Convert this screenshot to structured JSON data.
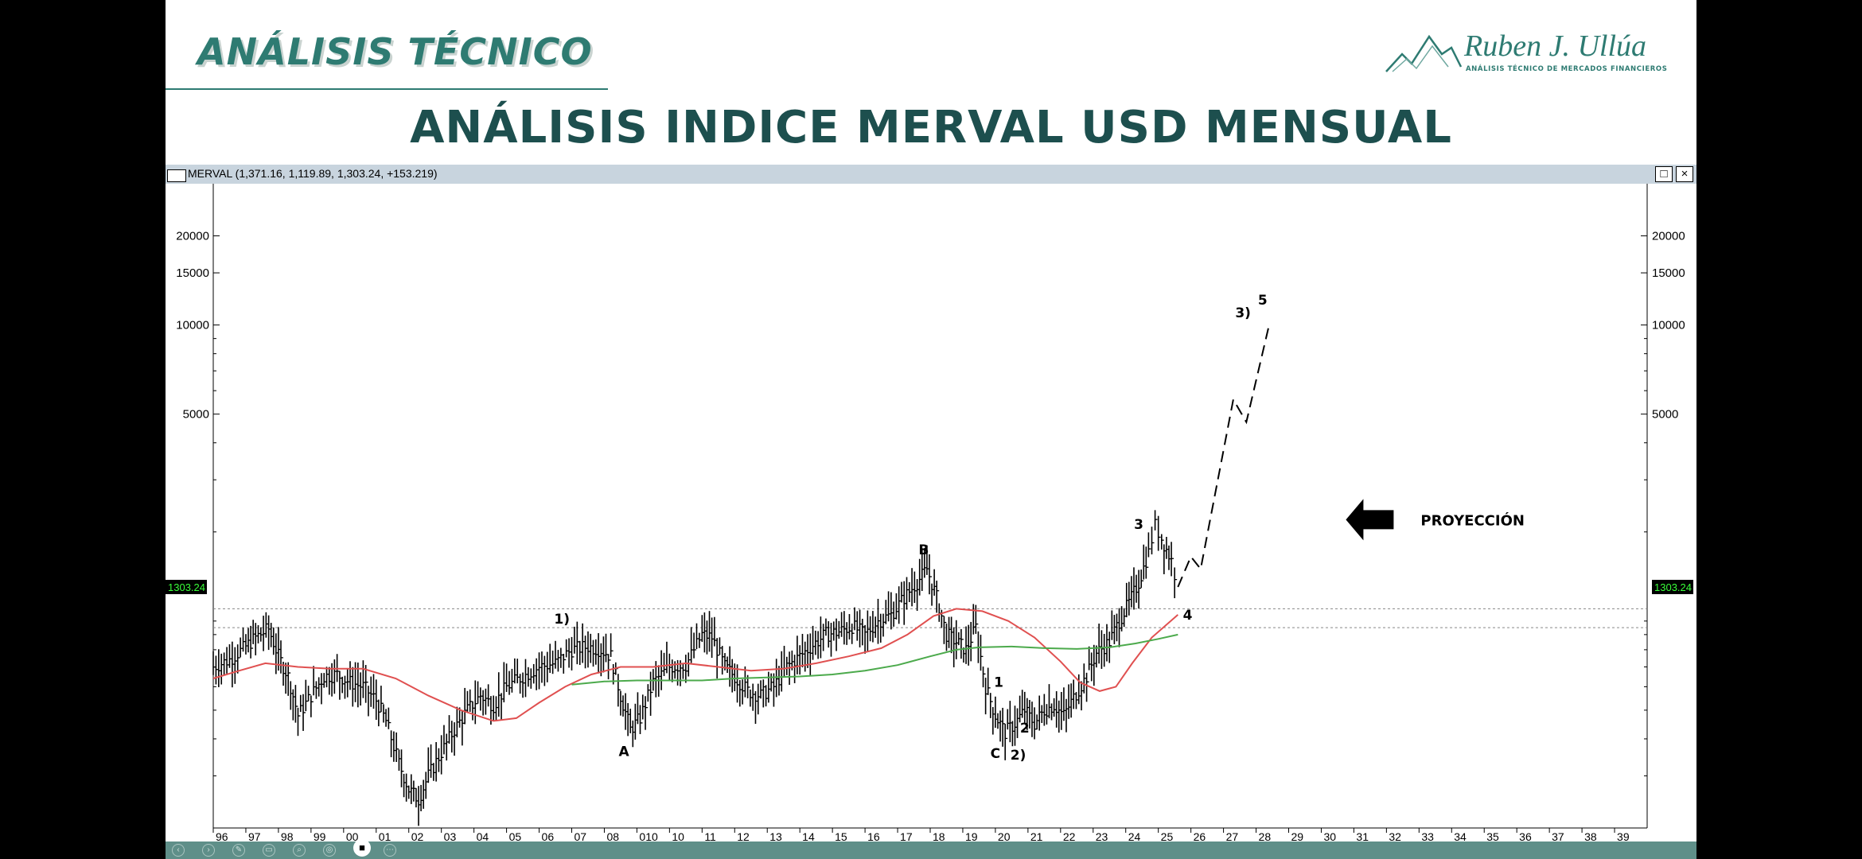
{
  "slide": {
    "section_title": "ANÁLISIS TÉCNICO",
    "main_title": "ANÁLISIS INDICE MERVAL USD MENSUAL",
    "logo_name": "Ruben J. Ullúa",
    "logo_tagline": "ANÁLISIS TÉCNICO DE MERCADOS FINANCIEROS"
  },
  "chart_window": {
    "header_text": "MERVAL (1,371.16, 1,119.89, 1,303.24, +153.219)",
    "restore_glyph": "□",
    "close_glyph": "×"
  },
  "chart_data": {
    "type": "line",
    "symbol": "MERVAL",
    "scale": "log",
    "ylim": [
      200,
      30000
    ],
    "xlim": [
      1996,
      2040
    ],
    "y_ticks": [
      5000,
      10000,
      15000,
      20000
    ],
    "x_tick_labels": [
      "96",
      "97",
      "98",
      "99",
      "00",
      "01",
      "02",
      "03",
      "04",
      "05",
      "06",
      "07",
      "08",
      "010",
      "10",
      "11",
      "12",
      "13",
      "14",
      "15",
      "16",
      "17",
      "18",
      "19",
      "20",
      "21",
      "22",
      "23",
      "24",
      "25",
      "26",
      "27",
      "28",
      "29",
      "30",
      "31",
      "32",
      "33",
      "34",
      "35",
      "36",
      "37",
      "38",
      "39"
    ],
    "last_price": "1303.24",
    "ohlc_last": {
      "open": 1371.16,
      "high": 1371.16,
      "low": 1119.89,
      "close": 1303.24,
      "change": 153.219
    },
    "horizontal_levels": [
      1100,
      950
    ],
    "series": [
      {
        "style": "bars",
        "color": "#000000",
        "points": [
          [
            1996.0,
            700
          ],
          [
            1996.5,
            740
          ],
          [
            1997.0,
            820
          ],
          [
            1997.3,
            880
          ],
          [
            1997.7,
            940
          ],
          [
            1998.0,
            760
          ],
          [
            1998.3,
            650
          ],
          [
            1998.6,
            480
          ],
          [
            1999.0,
            560
          ],
          [
            1999.4,
            650
          ],
          [
            1999.8,
            660
          ],
          [
            2000.2,
            620
          ],
          [
            2000.6,
            600
          ],
          [
            2001.0,
            540
          ],
          [
            2001.3,
            460
          ],
          [
            2001.7,
            330
          ],
          [
            2002.0,
            270
          ],
          [
            2002.3,
            250
          ],
          [
            2002.6,
            300
          ],
          [
            2003.0,
            360
          ],
          [
            2003.4,
            430
          ],
          [
            2003.8,
            500
          ],
          [
            2004.2,
            560
          ],
          [
            2004.6,
            520
          ],
          [
            2005.0,
            600
          ],
          [
            2005.5,
            650
          ],
          [
            2006.0,
            700
          ],
          [
            2006.5,
            720
          ],
          [
            2007.0,
            800
          ],
          [
            2007.5,
            820
          ],
          [
            2007.9,
            800
          ],
          [
            2008.2,
            760
          ],
          [
            2008.5,
            560
          ],
          [
            2008.8,
            430
          ],
          [
            2009.1,
            470
          ],
          [
            2009.5,
            620
          ],
          [
            2010.0,
            700
          ],
          [
            2010.5,
            710
          ],
          [
            2011.0,
            900
          ],
          [
            2011.3,
            880
          ],
          [
            2011.7,
            700
          ],
          [
            2012.0,
            650
          ],
          [
            2012.4,
            580
          ],
          [
            2012.8,
            560
          ],
          [
            2013.2,
            600
          ],
          [
            2013.6,
            700
          ],
          [
            2014.0,
            760
          ],
          [
            2014.4,
            830
          ],
          [
            2014.8,
            900
          ],
          [
            2015.2,
            920
          ],
          [
            2015.6,
            960
          ],
          [
            2016.0,
            900
          ],
          [
            2016.4,
            1000
          ],
          [
            2016.8,
            1050
          ],
          [
            2017.2,
            1200
          ],
          [
            2017.6,
            1350
          ],
          [
            2017.9,
            1500
          ],
          [
            2018.2,
            1200
          ],
          [
            2018.5,
            900
          ],
          [
            2018.8,
            850
          ],
          [
            2019.1,
            800
          ],
          [
            2019.4,
            950
          ],
          [
            2019.7,
            600
          ],
          [
            2020.0,
            480
          ],
          [
            2020.3,
            420
          ],
          [
            2020.6,
            450
          ],
          [
            2020.9,
            500
          ],
          [
            2021.2,
            450
          ],
          [
            2021.5,
            500
          ],
          [
            2021.8,
            520
          ],
          [
            2022.1,
            480
          ],
          [
            2022.4,
            550
          ],
          [
            2022.8,
            650
          ],
          [
            2023.1,
            780
          ],
          [
            2023.5,
            850
          ],
          [
            2023.8,
            1000
          ],
          [
            2024.1,
            1150
          ],
          [
            2024.4,
            1350
          ],
          [
            2024.7,
            1700
          ],
          [
            2024.9,
            2100
          ],
          [
            2025.1,
            1900
          ],
          [
            2025.4,
            1600
          ],
          [
            2025.6,
            1303.24
          ]
        ]
      },
      {
        "style": "line",
        "color": "#e05050",
        "points": [
          [
            1996.0,
            640
          ],
          [
            1996.8,
            680
          ],
          [
            1997.6,
            720
          ],
          [
            1998.6,
            700
          ],
          [
            1999.6,
            690
          ],
          [
            2000.6,
            690
          ],
          [
            2001.6,
            640
          ],
          [
            2002.6,
            560
          ],
          [
            2003.6,
            500
          ],
          [
            2004.6,
            460
          ],
          [
            2005.3,
            470
          ],
          [
            2006.0,
            530
          ],
          [
            2006.8,
            600
          ],
          [
            2007.6,
            660
          ],
          [
            2008.5,
            700
          ],
          [
            2009.5,
            700
          ],
          [
            2010.5,
            720
          ],
          [
            2011.5,
            700
          ],
          [
            2012.5,
            680
          ],
          [
            2013.5,
            690
          ],
          [
            2014.5,
            720
          ],
          [
            2015.5,
            760
          ],
          [
            2016.5,
            810
          ],
          [
            2017.3,
            900
          ],
          [
            2018.1,
            1040
          ],
          [
            2018.8,
            1100
          ],
          [
            2019.6,
            1080
          ],
          [
            2020.4,
            1000
          ],
          [
            2021.2,
            880
          ],
          [
            2022.0,
            730
          ],
          [
            2022.6,
            620
          ],
          [
            2023.2,
            580
          ],
          [
            2023.7,
            600
          ],
          [
            2024.2,
            720
          ],
          [
            2024.8,
            880
          ],
          [
            2025.6,
            1050
          ]
        ]
      },
      {
        "style": "line",
        "color": "#4caa4c",
        "points": [
          [
            2007.0,
            610
          ],
          [
            2008.0,
            625
          ],
          [
            2009.0,
            630
          ],
          [
            2010.0,
            630
          ],
          [
            2011.0,
            630
          ],
          [
            2012.0,
            640
          ],
          [
            2013.0,
            645
          ],
          [
            2014.0,
            650
          ],
          [
            2015.0,
            660
          ],
          [
            2016.0,
            680
          ],
          [
            2017.0,
            710
          ],
          [
            2018.0,
            760
          ],
          [
            2018.8,
            800
          ],
          [
            2019.5,
            815
          ],
          [
            2020.5,
            820
          ],
          [
            2021.5,
            810
          ],
          [
            2022.5,
            805
          ],
          [
            2023.5,
            815
          ],
          [
            2024.3,
            840
          ],
          [
            2025.0,
            870
          ],
          [
            2025.6,
            900
          ]
        ]
      },
      {
        "style": "dashed",
        "color": "#000000",
        "points": [
          [
            2025.6,
            1303
          ],
          [
            2026.0,
            1650
          ],
          [
            2026.3,
            1500
          ],
          [
            2027.3,
            5600
          ],
          [
            2027.7,
            4700
          ],
          [
            2028.4,
            10000
          ]
        ]
      }
    ],
    "annotations": [
      {
        "text": "1)",
        "x": 2006.7,
        "y": 980
      },
      {
        "text": "A",
        "x": 2008.6,
        "y": 350
      },
      {
        "text": "B",
        "x": 2017.8,
        "y": 1680
      },
      {
        "text": "1",
        "x": 2020.1,
        "y": 600
      },
      {
        "text": "2",
        "x": 2020.9,
        "y": 420
      },
      {
        "text": "C",
        "x": 2020.0,
        "y": 345
      },
      {
        "text": "2)",
        "x": 2020.7,
        "y": 340
      },
      {
        "text": "3",
        "x": 2024.4,
        "y": 2050
      },
      {
        "text": "4",
        "x": 2025.9,
        "y": 1010
      },
      {
        "text": "3)",
        "x": 2027.6,
        "y": 10600
      },
      {
        "text": "5",
        "x": 2028.2,
        "y": 11700
      }
    ],
    "callout": {
      "text": "PROYECCIÓN",
      "arrow": "left",
      "x": 2031.0,
      "y": 2200
    }
  },
  "toolbar": {
    "icons": [
      "back-icon",
      "forward-icon",
      "pen-icon",
      "screen-icon",
      "zoom-icon",
      "settings-icon",
      "camera-icon",
      "more-icon"
    ],
    "glyphs": [
      "‹",
      "›",
      "✎",
      "▭",
      "⌕",
      "◎",
      "■",
      "⋯"
    ]
  }
}
